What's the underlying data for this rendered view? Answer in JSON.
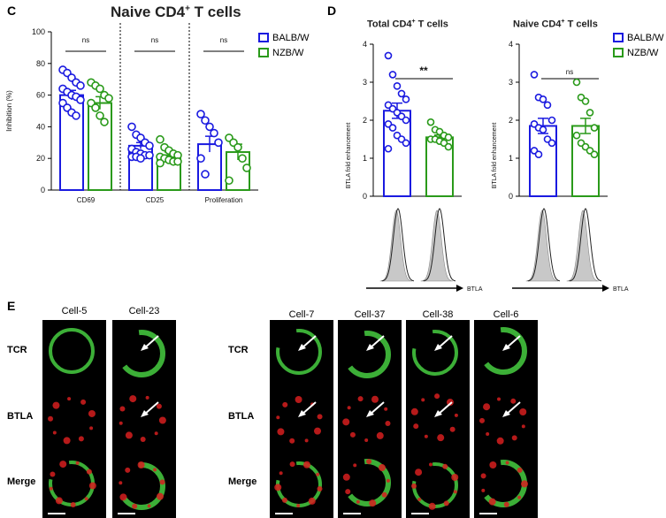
{
  "panels": {
    "c_label": "C",
    "d_label": "D",
    "e_label": "E",
    "c_title": "Naive CD4",
    "c_title_sup": "+",
    "c_title_tail": " T cells",
    "d_left_title": "Total CD4",
    "d_left_sup": "+",
    "d_left_tail": " T cells",
    "d_right_title": "Naive CD4",
    "d_right_sup": "+",
    "d_right_tail": " T cells"
  },
  "legend": {
    "balb": "BALB/W",
    "nzb": "NZB/W"
  },
  "colors": {
    "balb": "#1a1ae0",
    "nzb": "#2a9a1a"
  },
  "chart_data": [
    {
      "type": "bar",
      "title": "Naive CD4+ T cells",
      "ylabel": "Inhibition (%)",
      "ylim": [
        0,
        100
      ],
      "yticks": [
        "0",
        "20",
        "40",
        "60",
        "80",
        "100"
      ],
      "categories": [
        "CD69",
        "CD25",
        "Proliferation"
      ],
      "significance": [
        "ns",
        "ns",
        "ns"
      ],
      "series": [
        {
          "name": "BALB/W",
          "values": [
            60,
            28,
            29
          ],
          "sem": [
            3,
            2,
            5
          ],
          "points": [
            [
              76,
              74,
              71,
              68,
              66,
              64,
              62,
              60,
              59,
              57,
              55,
              52,
              49,
              47
            ],
            [
              40,
              35,
              33,
              30,
              28,
              26,
              24,
              23,
              22,
              22,
              21,
              21,
              20
            ],
            [
              48,
              44,
              40,
              36,
              30,
              20,
              10
            ]
          ]
        },
        {
          "name": "NZB/W",
          "values": [
            55,
            22,
            24
          ],
          "sem": [
            4,
            2,
            5
          ],
          "points": [
            [
              68,
              66,
              64,
              60,
              58,
              55,
              52,
              47,
              43
            ],
            [
              32,
              27,
              25,
              23,
              22,
              21,
              20,
              19,
              18,
              18,
              17
            ],
            [
              33,
              30,
              27,
              20,
              14,
              6
            ]
          ]
        }
      ]
    },
    {
      "type": "bar",
      "title": "Total CD4+ T cells",
      "ylabel": "BTLA fold enhancement",
      "xlabel": "BTLA",
      "ylim": [
        0,
        4
      ],
      "yticks": [
        "0",
        "1",
        "2",
        "3",
        "4"
      ],
      "significance": "**",
      "series": [
        {
          "name": "BALB/W",
          "value": 2.25,
          "sem": 0.2,
          "points": [
            3.7,
            3.2,
            2.9,
            2.7,
            2.55,
            2.4,
            2.3,
            2.2,
            2.1,
            2.0,
            1.9,
            1.8,
            1.6,
            1.5,
            1.4,
            1.25
          ]
        },
        {
          "name": "NZB/W",
          "value": 1.55,
          "sem": 0.06,
          "points": [
            1.95,
            1.75,
            1.7,
            1.6,
            1.55,
            1.5,
            1.5,
            1.45,
            1.4,
            1.3
          ]
        }
      ]
    },
    {
      "type": "bar",
      "title": "Naive CD4+ T cells",
      "ylabel": "BTLA fold enhancement",
      "xlabel": "BTLA",
      "ylim": [
        0,
        4
      ],
      "yticks": [
        "0",
        "1",
        "2",
        "3",
        "4"
      ],
      "significance": "ns",
      "series": [
        {
          "name": "BALB/W",
          "value": 1.85,
          "sem": 0.2,
          "points": [
            3.2,
            2.6,
            2.55,
            2.4,
            2.0,
            1.9,
            1.8,
            1.75,
            1.5,
            1.4,
            1.2,
            1.1
          ]
        },
        {
          "name": "NZB/W",
          "value": 1.85,
          "sem": 0.2,
          "points": [
            3.0,
            2.6,
            2.5,
            2.2,
            1.8,
            1.6,
            1.4,
            1.3,
            1.2,
            1.1
          ]
        }
      ]
    }
  ],
  "microscopy": {
    "left_cells": [
      "Cell-5",
      "Cell-23"
    ],
    "right_cells": [
      "Cell-7",
      "Cell-37",
      "Cell-38",
      "Cell-6"
    ],
    "rows": [
      "TCR",
      "BTLA",
      "Merge"
    ]
  }
}
